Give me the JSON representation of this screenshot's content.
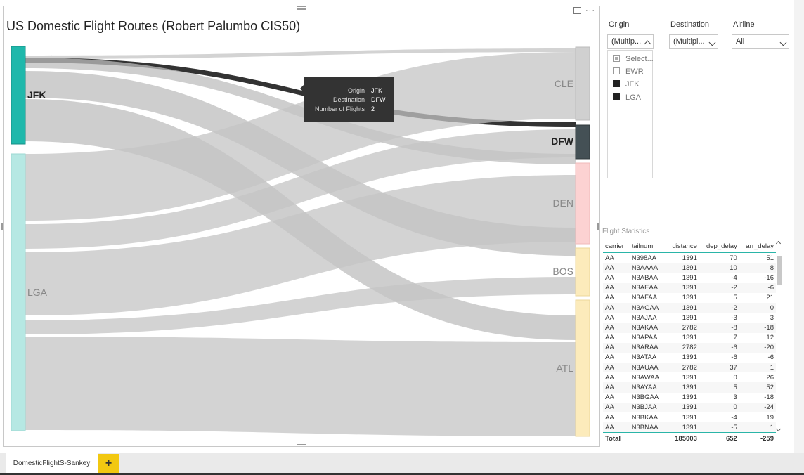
{
  "visual": {
    "title": "US Domestic Flight  Routes (Robert Palumbo CIS50)",
    "menu_label": "···"
  },
  "sankey": {
    "source_nodes": [
      {
        "label": "JFK",
        "color": "#1fb8ab"
      },
      {
        "label": "LGA",
        "color": "#b6e8e3"
      }
    ],
    "target_nodes": [
      {
        "label": "CLE",
        "color": "#d0d0d0"
      },
      {
        "label": "DFW",
        "color": "#445055"
      },
      {
        "label": "DEN",
        "color": "#fcd2d2"
      },
      {
        "label": "BOS",
        "color": "#fcebbb"
      },
      {
        "label": "ATL",
        "color": "#fcebbb"
      }
    ],
    "highlighted_link": {
      "origin": "JFK",
      "destination": "DFW"
    }
  },
  "tooltip": {
    "rows": [
      {
        "key": "Origin",
        "value": "JFK"
      },
      {
        "key": "Destination",
        "value": "DFW"
      },
      {
        "key": "Number of Flights",
        "value": "2"
      }
    ]
  },
  "slicers": {
    "origin": {
      "label": "Origin",
      "value": "(Multip...",
      "options": [
        {
          "label": "Select...",
          "state": "partial"
        },
        {
          "label": "EWR",
          "state": "empty"
        },
        {
          "label": "JFK",
          "state": "filled"
        },
        {
          "label": "LGA",
          "state": "filled"
        }
      ]
    },
    "destination": {
      "label": "Destination",
      "value": "(Multipl..."
    },
    "airline": {
      "label": "Airline",
      "value": "All"
    }
  },
  "stats": {
    "title": "Flight Statistics",
    "columns": [
      "carrier",
      "tailnum",
      "distance",
      "dep_delay",
      "arr_delay"
    ],
    "rows": [
      [
        "AA",
        "N398AA",
        "1391",
        "70",
        "51"
      ],
      [
        "AA",
        "N3AAAA",
        "1391",
        "10",
        "8"
      ],
      [
        "AA",
        "N3ABAA",
        "1391",
        "-4",
        "-16"
      ],
      [
        "AA",
        "N3AEAA",
        "1391",
        "-2",
        "-6"
      ],
      [
        "AA",
        "N3AFAA",
        "1391",
        "5",
        "21"
      ],
      [
        "AA",
        "N3AGAA",
        "1391",
        "-2",
        "0"
      ],
      [
        "AA",
        "N3AJAA",
        "1391",
        "-3",
        "3"
      ],
      [
        "AA",
        "N3AKAA",
        "2782",
        "-8",
        "-18"
      ],
      [
        "AA",
        "N3APAA",
        "1391",
        "7",
        "12"
      ],
      [
        "AA",
        "N3ARAA",
        "2782",
        "-6",
        "-20"
      ],
      [
        "AA",
        "N3ATAA",
        "1391",
        "-6",
        "-6"
      ],
      [
        "AA",
        "N3AUAA",
        "2782",
        "37",
        "1"
      ],
      [
        "AA",
        "N3AWAA",
        "1391",
        "0",
        "26"
      ],
      [
        "AA",
        "N3AYAA",
        "1391",
        "5",
        "52"
      ],
      [
        "AA",
        "N3BGAA",
        "1391",
        "3",
        "-18"
      ],
      [
        "AA",
        "N3BJAA",
        "1391",
        "0",
        "-24"
      ],
      [
        "AA",
        "N3BKAA",
        "1391",
        "-4",
        "19"
      ],
      [
        "AA",
        "N3BNAA",
        "1391",
        "-5",
        "1"
      ]
    ],
    "total": [
      "Total",
      "",
      "185003",
      "652",
      "-259"
    ]
  },
  "tabs": {
    "active": "DomesticFlightS-Sankey",
    "add_label": "+",
    "accent": "#f2c811"
  }
}
